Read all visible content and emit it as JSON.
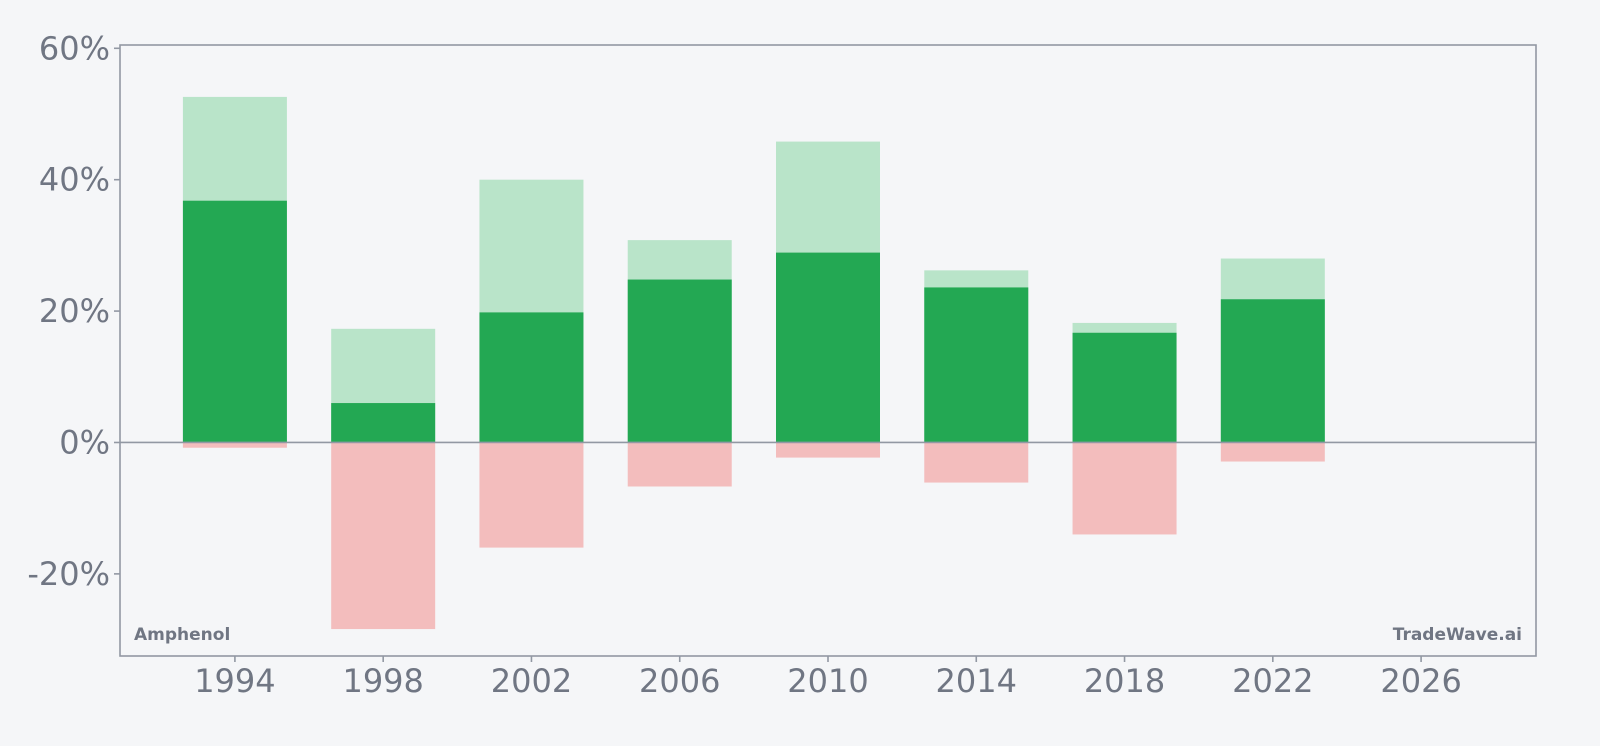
{
  "chart_data": {
    "type": "bar",
    "x_ticks": [
      "1994",
      "1998",
      "2002",
      "2006",
      "2010",
      "2014",
      "2018",
      "2022",
      "2026"
    ],
    "y_ticks": [
      "60%",
      "40%",
      "20%",
      "0%",
      "-20%"
    ],
    "xlim": [
      1990.9,
      2029.1
    ],
    "ylim": [
      -32.5,
      60.5
    ],
    "unit": "%",
    "grid": false,
    "bars": [
      {
        "x": 1994,
        "close": 36.8,
        "high": 52.6,
        "low": -0.8
      },
      {
        "x": 1998,
        "close": 6.0,
        "high": 17.3,
        "low": -28.4
      },
      {
        "x": 2002,
        "close": 19.8,
        "high": 40.0,
        "low": -16.0
      },
      {
        "x": 2006,
        "close": 24.8,
        "high": 30.8,
        "low": -6.7
      },
      {
        "x": 2010,
        "close": 28.9,
        "high": 45.8,
        "low": -2.3
      },
      {
        "x": 2014,
        "close": 23.6,
        "high": 26.2,
        "low": -6.1
      },
      {
        "x": 2018,
        "close": 16.7,
        "high": 18.2,
        "low": -14.0
      },
      {
        "x": 2022,
        "close": 21.8,
        "high": 28.0,
        "low": -2.9
      }
    ],
    "colors": {
      "close": "#23a853",
      "high": "#b9e4c9",
      "low": "#f3bdbd",
      "axis": "#9298a3",
      "text": "#707683",
      "background": "#f5f6f8"
    }
  },
  "labels": {
    "company": "Amphenol",
    "brand": "TradeWave.ai"
  }
}
